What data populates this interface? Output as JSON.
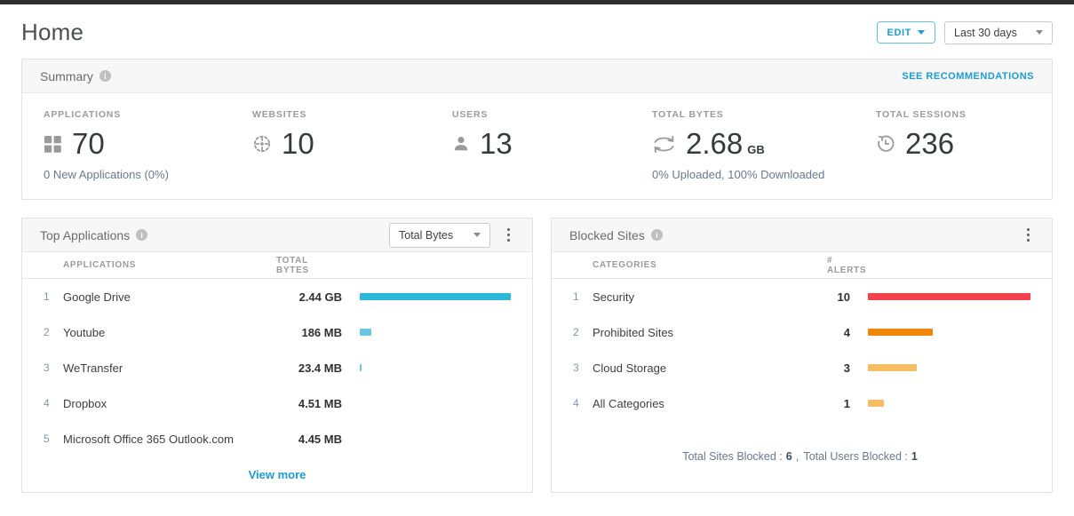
{
  "page": {
    "title": "Home"
  },
  "header": {
    "edit_label": "EDIT",
    "date_range": "Last 30 days"
  },
  "summary": {
    "title": "Summary",
    "see_recommendations": "SEE RECOMMENDATIONS",
    "metrics": {
      "applications": {
        "label": "APPLICATIONS",
        "value": "70",
        "icon": "grid-icon",
        "subtext": "0 New Applications (0%)"
      },
      "websites": {
        "label": "WEBSITES",
        "value": "10",
        "icon": "globe-icon"
      },
      "users": {
        "label": "USERS",
        "value": "13",
        "icon": "user-icon"
      },
      "total_bytes": {
        "label": "TOTAL BYTES",
        "value": "2.68",
        "unit": "GB",
        "icon": "transfer-arrows-icon",
        "subtext": "0% Uploaded, 100% Downloaded"
      },
      "total_sessions": {
        "label": "TOTAL SESSIONS",
        "value": "236",
        "icon": "history-clock-icon"
      }
    }
  },
  "top_applications": {
    "title": "Top Applications",
    "metric_select_value": "Total Bytes",
    "columns": {
      "col1": "APPLICATIONS",
      "col2": "TOTAL BYTES"
    },
    "rows": [
      {
        "rank": "1",
        "name": "Google Drive",
        "value": "2.44 GB",
        "bar_pct": 100,
        "bar_color": "#2BB8D9"
      },
      {
        "rank": "2",
        "name": "Youtube",
        "value": "186 MB",
        "bar_pct": 7.5,
        "bar_color": "#6AC8DE"
      },
      {
        "rank": "3",
        "name": "WeTransfer",
        "value": "23.4 MB",
        "bar_pct": 1.2,
        "bar_color": "#6AC8DE"
      },
      {
        "rank": "4",
        "name": "Dropbox",
        "value": "4.51 MB",
        "bar_pct": 0,
        "bar_color": "#6AC8DE"
      },
      {
        "rank": "5",
        "name": "Microsoft Office 365 Outlook.com",
        "value": "4.45 MB",
        "bar_pct": 0,
        "bar_color": "#6AC8DE"
      }
    ],
    "view_more": "View more"
  },
  "blocked_sites": {
    "title": "Blocked Sites",
    "columns": {
      "col1": "CATEGORIES",
      "col2": "# ALERTS"
    },
    "rows": [
      {
        "rank": "1",
        "name": "Security",
        "value": "10",
        "bar_pct": 100,
        "bar_color": "#F4424D"
      },
      {
        "rank": "2",
        "name": "Prohibited Sites",
        "value": "4",
        "bar_pct": 40,
        "bar_color": "#F1870A"
      },
      {
        "rank": "3",
        "name": "Cloud Storage",
        "value": "3",
        "bar_pct": 30,
        "bar_color": "#F6BE62"
      },
      {
        "rank": "4",
        "name": "All Categories",
        "value": "1",
        "bar_pct": 10,
        "bar_color": "#F6BE62"
      }
    ],
    "footer": {
      "sites_label": "Total Sites Blocked :",
      "sites_value": "6",
      "separator": ",",
      "users_label": "Total Users Blocked :",
      "users_value": "1"
    }
  },
  "colors": {
    "accent_blue": "#1B9CD8",
    "bar_cyan": "#2BB8D9",
    "bar_red": "#F4424D",
    "bar_orange": "#F1870A",
    "bar_amber": "#F6BE62",
    "topbar_dark": "#2E2E2E"
  }
}
